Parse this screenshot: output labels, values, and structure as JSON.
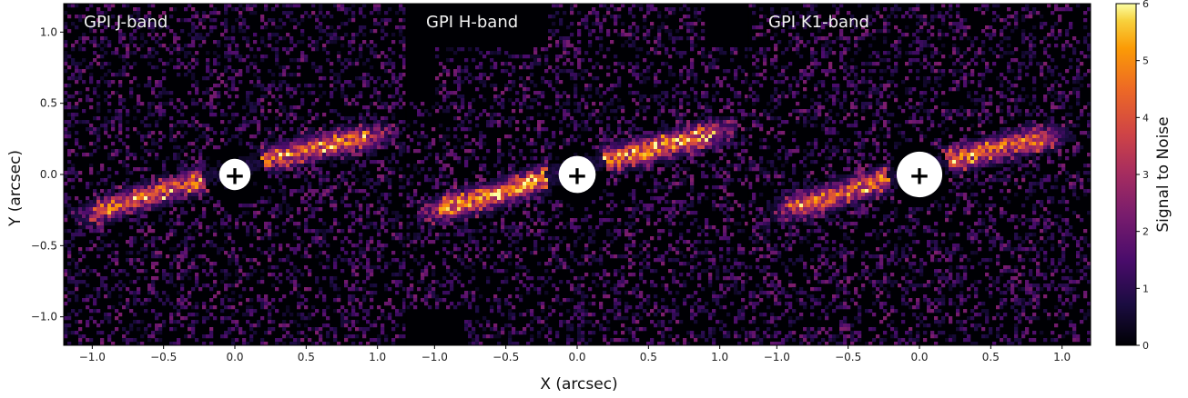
{
  "chart_data": {
    "type": "heatmap",
    "colormap": "inferno",
    "xlabel": "X (arcsec)",
    "ylabel": "Y (arcsec)",
    "colorbar": {
      "label": "Signal to Noise",
      "range": [
        0,
        6
      ],
      "ticks": [
        "0",
        "1",
        "2",
        "3",
        "4",
        "5",
        "6"
      ]
    },
    "xlim": [
      -1.2,
      1.2
    ],
    "ylim": [
      -1.2,
      1.2
    ],
    "x_ticks": [
      "−1.0",
      "−0.5",
      "0.0",
      "0.5",
      "1.0"
    ],
    "x_tick_values": [
      -1.0,
      -0.5,
      0.0,
      0.5,
      1.0
    ],
    "y_ticks": [
      "1.0",
      "0.5",
      "0.0",
      "−0.5",
      "−1.0"
    ],
    "y_tick_values": [
      1.0,
      0.5,
      0.0,
      -0.5,
      -1.0
    ],
    "star_marker": {
      "x": 0.0,
      "y": 0.0,
      "symbol": "+"
    },
    "panels": [
      {
        "title": "GPI J-band",
        "mask_radius_arcsec": 0.11,
        "peak_snr": 4.5,
        "disk_ridge": {
          "x": [
            -1.1,
            -0.6,
            0.0,
            0.6,
            1.0
          ],
          "y": [
            -0.3,
            -0.15,
            0.04,
            0.2,
            0.27
          ]
        }
      },
      {
        "title": "GPI H-band",
        "mask_radius_arcsec": 0.13,
        "peak_snr": 5.5,
        "disk_ridge": {
          "x": [
            -1.1,
            -0.6,
            0.0,
            0.6,
            1.0
          ],
          "y": [
            -0.28,
            -0.15,
            0.05,
            0.2,
            0.3
          ]
        }
      },
      {
        "title": "GPI K1-band",
        "mask_radius_arcsec": 0.16,
        "peak_snr": 4.8,
        "disk_ridge": {
          "x": [
            -1.0,
            -0.6,
            0.0,
            0.6,
            0.9
          ],
          "y": [
            -0.26,
            -0.15,
            0.04,
            0.2,
            0.26
          ]
        }
      }
    ]
  }
}
